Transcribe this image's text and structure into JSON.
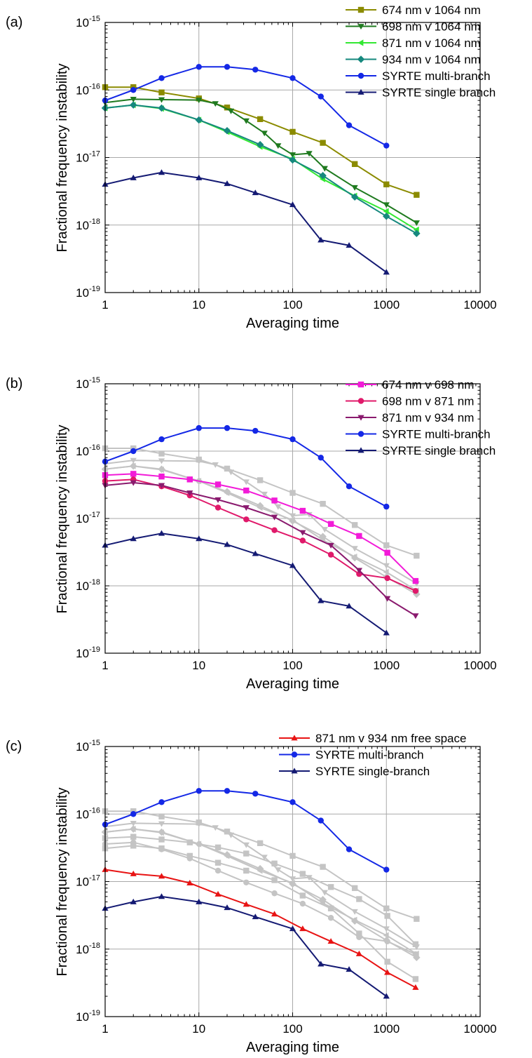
{
  "chart_data": [
    {
      "panel_label": "(a)",
      "type": "line",
      "xscale": "log",
      "yscale": "log",
      "xlim": [
        1,
        10000
      ],
      "ylim": [
        1e-19,
        1e-15
      ],
      "xlabel": "Averaging time",
      "ylabel": "Fractional frequency instability",
      "xticks": [
        "1",
        "10",
        "100",
        "1000",
        "10000"
      ],
      "yticks": [
        "10",
        "10",
        "10",
        "10",
        "10"
      ],
      "ytick_exponents": [
        "-19",
        "-18",
        "-17",
        "-16",
        "-15"
      ],
      "grid": true,
      "legend_position": "top-right",
      "series": [
        {
          "name": "674 nm v 1064 nm",
          "color": "#8b8b00",
          "marker": "square",
          "x": [
            1,
            2,
            4,
            10,
            20,
            45,
            100,
            210,
            460,
            1000,
            2100
          ],
          "y": [
            1.1e-16,
            1.1e-16,
            9.2e-17,
            7.5e-17,
            5.5e-17,
            3.7e-17,
            2.4e-17,
            1.65e-17,
            8e-18,
            4e-18,
            2.8e-18
          ]
        },
        {
          "name": "698 nm v 1064 nm",
          "color": "#1f7a1f",
          "marker": "triangle-down",
          "x": [
            1,
            2,
            4,
            10,
            15,
            22,
            32,
            50,
            70,
            100,
            150,
            220,
            460,
            1000,
            2100
          ],
          "y": [
            6.5e-17,
            7.3e-17,
            7.2e-17,
            7.1e-17,
            6.3e-17,
            4.9e-17,
            3.5e-17,
            2.3e-17,
            1.5e-17,
            1.1e-17,
            1.15e-17,
            6.9e-18,
            3.6e-18,
            2e-18,
            1.08e-18
          ]
        },
        {
          "name": "871 nm v 1064 nm",
          "color": "#33e833",
          "marker": "triangle-left",
          "x": [
            1,
            2,
            4,
            10,
            20,
            45,
            100,
            210,
            460,
            1000,
            2100
          ],
          "y": [
            5.4e-17,
            6e-17,
            5.3e-17,
            3.6e-17,
            2.4e-17,
            1.45e-17,
            9.5e-18,
            4.8e-18,
            2.7e-18,
            1.6e-18,
            8.5e-19
          ]
        },
        {
          "name": "934 nm v 1064 nm",
          "color": "#16887e",
          "marker": "diamond",
          "x": [
            1,
            2,
            4,
            10,
            20,
            45,
            100,
            210,
            460,
            1000,
            2100
          ],
          "y": [
            5.4e-17,
            6e-17,
            5.4e-17,
            3.6e-17,
            2.5e-17,
            1.55e-17,
            9.2e-18,
            5.4e-18,
            2.6e-18,
            1.35e-18,
            7.5e-19
          ]
        },
        {
          "name": "SYRTE multi-branch",
          "color": "#1428e6",
          "marker": "circle",
          "x": [
            1,
            2,
            4,
            10,
            20,
            40,
            100,
            200,
            400,
            1000
          ],
          "y": [
            7e-17,
            1e-16,
            1.5e-16,
            2.2e-16,
            2.2e-16,
            2e-16,
            1.5e-16,
            8e-17,
            3e-17,
            1.5e-17
          ]
        },
        {
          "name": "SYRTE single branch",
          "color": "#141a73",
          "marker": "triangle-up",
          "x": [
            1,
            2,
            4,
            10,
            20,
            40,
            100,
            200,
            400,
            1000
          ],
          "y": [
            4e-18,
            5e-18,
            6e-18,
            5e-18,
            4.1e-18,
            3e-18,
            2e-18,
            6e-19,
            5e-19,
            2e-19
          ]
        }
      ]
    },
    {
      "panel_label": "(b)",
      "type": "line",
      "xscale": "log",
      "yscale": "log",
      "xlim": [
        1,
        10000
      ],
      "ylim": [
        1e-19,
        1e-15
      ],
      "xlabel": "Averaging time",
      "ylabel": "Fractional frequency instability",
      "xticks": [
        "1",
        "10",
        "100",
        "1000",
        "10000"
      ],
      "yticks": [
        "10",
        "10",
        "10",
        "10",
        "10"
      ],
      "ytick_exponents": [
        "-19",
        "-18",
        "-17",
        "-16",
        "-15"
      ],
      "grid": true,
      "legend_position": "top-right",
      "background_series_color": "#c4c4c4",
      "series": [
        {
          "name": "",
          "color": "#c4c4c4",
          "marker": "square",
          "in_legend": false,
          "x": [
            1,
            2,
            4,
            10,
            20,
            45,
            100,
            210,
            460,
            1000,
            2100
          ],
          "y": [
            1.1e-16,
            1.1e-16,
            9.2e-17,
            7.5e-17,
            5.5e-17,
            3.7e-17,
            2.4e-17,
            1.65e-17,
            8e-18,
            4e-18,
            2.8e-18
          ]
        },
        {
          "name": "",
          "color": "#c4c4c4",
          "marker": "triangle-down",
          "in_legend": false,
          "x": [
            1,
            2,
            4,
            10,
            15,
            22,
            32,
            50,
            70,
            100,
            150,
            220,
            460,
            1000,
            2100
          ],
          "y": [
            6.5e-17,
            7.3e-17,
            7.2e-17,
            7.1e-17,
            6.3e-17,
            4.9e-17,
            3.5e-17,
            2.3e-17,
            1.5e-17,
            1.1e-17,
            1.15e-17,
            6.9e-18,
            3.6e-18,
            2e-18,
            1.08e-18
          ]
        },
        {
          "name": "",
          "color": "#c4c4c4",
          "marker": "triangle-left",
          "in_legend": false,
          "x": [
            1,
            2,
            4,
            10,
            20,
            45,
            100,
            210,
            460,
            1000,
            2100
          ],
          "y": [
            5.4e-17,
            6e-17,
            5.3e-17,
            3.6e-17,
            2.4e-17,
            1.45e-17,
            9.5e-18,
            4.8e-18,
            2.7e-18,
            1.6e-18,
            8.5e-19
          ]
        },
        {
          "name": "",
          "color": "#c4c4c4",
          "marker": "diamond",
          "in_legend": false,
          "x": [
            1,
            2,
            4,
            10,
            20,
            45,
            100,
            210,
            460,
            1000,
            2100
          ],
          "y": [
            5.4e-17,
            6e-17,
            5.4e-17,
            3.6e-17,
            2.5e-17,
            1.55e-17,
            9.2e-18,
            5.4e-18,
            2.6e-18,
            1.35e-18,
            7.5e-19
          ]
        },
        {
          "name": "674 nm v 698 nm",
          "color": "#f21bd8",
          "marker": "square",
          "x": [
            1,
            2,
            4,
            8,
            16,
            32,
            64,
            128,
            256,
            512,
            1024,
            2048
          ],
          "y": [
            4.4e-17,
            4.6e-17,
            4.2e-17,
            3.8e-17,
            3.2e-17,
            2.6e-17,
            1.85e-17,
            1.3e-17,
            8.3e-18,
            5.5e-18,
            3.1e-18,
            1.18e-18
          ]
        },
        {
          "name": "698 nm v 871 nm",
          "color": "#e0196a",
          "marker": "circle",
          "x": [
            1,
            2,
            4,
            8,
            16,
            32,
            64,
            128,
            256,
            512,
            1024,
            2048
          ],
          "y": [
            3.6e-17,
            3.8e-17,
            3e-17,
            2.2e-17,
            1.45e-17,
            9.7e-18,
            6.7e-18,
            4.7e-18,
            2.9e-18,
            1.5e-18,
            1.3e-18,
            8.4e-19
          ]
        },
        {
          "name": "871 nm v 934 nm",
          "color": "#8a1a6e",
          "marker": "triangle-down",
          "x": [
            1,
            2,
            4,
            8,
            16,
            32,
            64,
            128,
            256,
            512,
            1024,
            2048
          ],
          "y": [
            3.1e-17,
            3.4e-17,
            3.1e-17,
            2.4e-17,
            1.9e-17,
            1.45e-17,
            1.05e-17,
            6.2e-18,
            4e-18,
            1.7e-18,
            6.5e-19,
            3.6e-19
          ]
        },
        {
          "name": "SYRTE multi-branch",
          "color": "#1428e6",
          "marker": "circle",
          "x": [
            1,
            2,
            4,
            10,
            20,
            40,
            100,
            200,
            400,
            1000
          ],
          "y": [
            7e-17,
            1e-16,
            1.5e-16,
            2.2e-16,
            2.2e-16,
            2e-16,
            1.5e-16,
            8e-17,
            3e-17,
            1.5e-17
          ]
        },
        {
          "name": "SYRTE single branch",
          "color": "#141a73",
          "marker": "triangle-up",
          "x": [
            1,
            2,
            4,
            10,
            20,
            40,
            100,
            200,
            400,
            1000
          ],
          "y": [
            4e-18,
            5e-18,
            6e-18,
            5e-18,
            4.1e-18,
            3e-18,
            2e-18,
            6e-19,
            5e-19,
            2e-19
          ]
        }
      ]
    },
    {
      "panel_label": "(c)",
      "type": "line",
      "xscale": "log",
      "yscale": "log",
      "xlim": [
        1,
        10000
      ],
      "ylim": [
        1e-19,
        1e-15
      ],
      "xlabel": "Averaging time",
      "ylabel": "Fractional frequency instability",
      "xticks": [
        "1",
        "10",
        "100",
        "1000",
        "10000"
      ],
      "yticks": [
        "10",
        "10",
        "10",
        "10",
        "10"
      ],
      "ytick_exponents": [
        "-19",
        "-18",
        "-17",
        "-16",
        "-15"
      ],
      "grid": true,
      "legend_position": "top-right",
      "background_series_color": "#c4c4c4",
      "series": [
        {
          "name": "",
          "color": "#c4c4c4",
          "marker": "square",
          "in_legend": false,
          "x": [
            1,
            2,
            4,
            10,
            20,
            45,
            100,
            210,
            460,
            1000,
            2100
          ],
          "y": [
            1.1e-16,
            1.1e-16,
            9.2e-17,
            7.5e-17,
            5.5e-17,
            3.7e-17,
            2.4e-17,
            1.65e-17,
            8e-18,
            4e-18,
            2.8e-18
          ]
        },
        {
          "name": "",
          "color": "#c4c4c4",
          "marker": "triangle-down",
          "in_legend": false,
          "x": [
            1,
            2,
            4,
            10,
            15,
            22,
            32,
            50,
            70,
            100,
            150,
            220,
            460,
            1000,
            2100
          ],
          "y": [
            6.5e-17,
            7.3e-17,
            7.2e-17,
            7.1e-17,
            6.3e-17,
            4.9e-17,
            3.5e-17,
            2.3e-17,
            1.5e-17,
            1.1e-17,
            1.15e-17,
            6.9e-18,
            3.6e-18,
            2e-18,
            1.08e-18
          ]
        },
        {
          "name": "",
          "color": "#c4c4c4",
          "marker": "triangle-left",
          "in_legend": false,
          "x": [
            1,
            2,
            4,
            10,
            20,
            45,
            100,
            210,
            460,
            1000,
            2100
          ],
          "y": [
            5.4e-17,
            6e-17,
            5.3e-17,
            3.6e-17,
            2.4e-17,
            1.45e-17,
            9.5e-18,
            4.8e-18,
            2.7e-18,
            1.6e-18,
            8.5e-19
          ]
        },
        {
          "name": "",
          "color": "#c4c4c4",
          "marker": "diamond",
          "in_legend": false,
          "x": [
            1,
            2,
            4,
            10,
            20,
            45,
            100,
            210,
            460,
            1000,
            2100
          ],
          "y": [
            5.4e-17,
            6e-17,
            5.4e-17,
            3.6e-17,
            2.5e-17,
            1.55e-17,
            9.2e-18,
            5.4e-18,
            2.6e-18,
            1.35e-18,
            7.5e-19
          ]
        },
        {
          "name": "",
          "color": "#c4c4c4",
          "marker": "square",
          "in_legend": false,
          "x": [
            1,
            2,
            4,
            8,
            16,
            32,
            64,
            128,
            256,
            512,
            1024,
            2048
          ],
          "y": [
            4.4e-17,
            4.6e-17,
            4.2e-17,
            3.8e-17,
            3.2e-17,
            2.6e-17,
            1.85e-17,
            1.3e-17,
            8.3e-18,
            5.5e-18,
            3.1e-18,
            1.18e-18
          ]
        },
        {
          "name": "",
          "color": "#c4c4c4",
          "marker": "circle",
          "in_legend": false,
          "x": [
            1,
            2,
            4,
            8,
            16,
            32,
            64,
            128,
            256,
            512,
            1024,
            2048
          ],
          "y": [
            3.6e-17,
            3.8e-17,
            3e-17,
            2.2e-17,
            1.45e-17,
            9.7e-18,
            6.7e-18,
            4.7e-18,
            2.9e-18,
            1.5e-18,
            1.3e-18,
            8.4e-19
          ]
        },
        {
          "name": "",
          "color": "#c4c4c4",
          "marker": "square",
          "in_legend": false,
          "x": [
            1,
            2,
            4,
            8,
            16,
            32,
            64,
            128,
            256,
            512,
            1024,
            2048
          ],
          "y": [
            3.1e-17,
            3.4e-17,
            3.1e-17,
            2.4e-17,
            1.9e-17,
            1.45e-17,
            1.05e-17,
            6.2e-18,
            4e-18,
            1.7e-18,
            6.5e-19,
            3.6e-19
          ]
        },
        {
          "name": "871 nm v 934 nm free space",
          "color": "#e81414",
          "marker": "triangle-up",
          "x": [
            1,
            2,
            4,
            8,
            16,
            32,
            64,
            128,
            256,
            512,
            1024,
            2048
          ],
          "y": [
            1.5e-17,
            1.3e-17,
            1.2e-17,
            9.5e-18,
            6.5e-18,
            4.6e-18,
            3.3e-18,
            2e-18,
            1.3e-18,
            8.5e-19,
            4.5e-19,
            2.7e-19
          ]
        },
        {
          "name": "SYRTE multi-branch",
          "color": "#1428e6",
          "marker": "circle",
          "x": [
            1,
            2,
            4,
            10,
            20,
            40,
            100,
            200,
            400,
            1000
          ],
          "y": [
            7e-17,
            1e-16,
            1.5e-16,
            2.2e-16,
            2.2e-16,
            2e-16,
            1.5e-16,
            8e-17,
            3e-17,
            1.5e-17
          ]
        },
        {
          "name": "SYRTE single-branch",
          "color": "#141a73",
          "marker": "triangle-up",
          "x": [
            1,
            2,
            4,
            10,
            20,
            40,
            100,
            200,
            400,
            1000
          ],
          "y": [
            4e-18,
            5e-18,
            6e-18,
            5e-18,
            4.1e-18,
            3e-18,
            2e-18,
            6e-19,
            5e-19,
            2e-19
          ]
        }
      ]
    }
  ]
}
